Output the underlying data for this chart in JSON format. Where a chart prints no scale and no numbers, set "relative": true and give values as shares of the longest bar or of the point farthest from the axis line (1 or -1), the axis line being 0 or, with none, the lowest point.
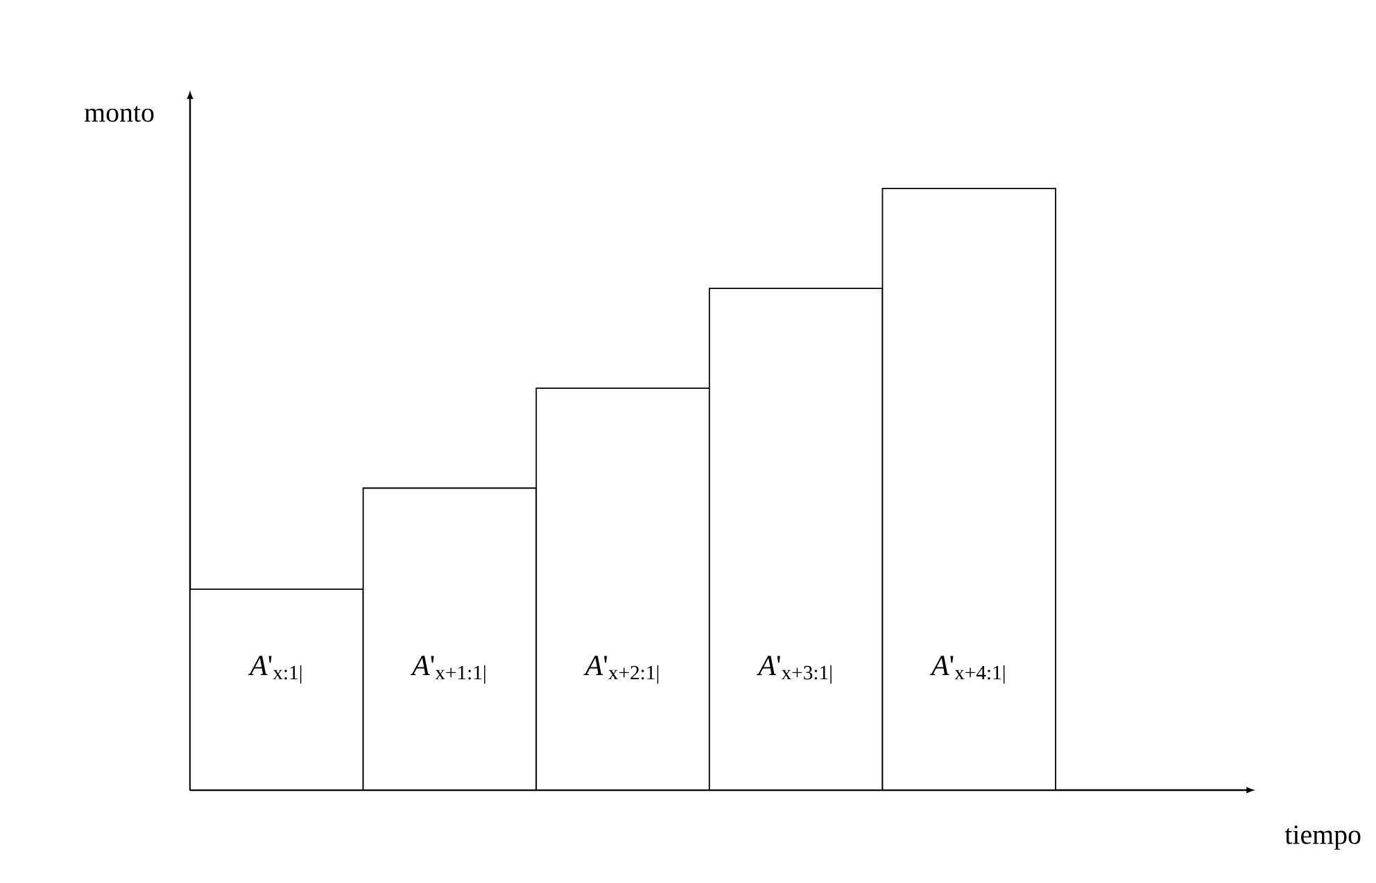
{
  "chart_data": {
    "type": "bar",
    "relative": true,
    "annotations": [
      "tiempo"
    ],
    "ylabel": "monto",
    "color": "#ffffff",
    "categories": [
      "*A*'$_{x:1|}$",
      "*A*'$_{x+1:1|}$",
      "*A*'$_{x+2:1|}$",
      "*A*'$_{x+3:1|}$",
      "*A*'$_{x+4:1|}$"
    ],
    "values": [
      0.334,
      0.502,
      0.668,
      0.834,
      1.0
    ]
  }
}
